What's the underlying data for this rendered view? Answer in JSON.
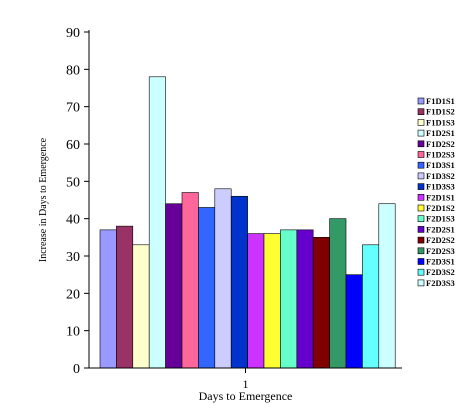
{
  "chart_data": {
    "type": "bar",
    "title": "",
    "xlabel": "Days to Emergence",
    "ylabel": "Increase in Days to Emergence",
    "categories": [
      "1"
    ],
    "ylim": [
      0,
      90
    ],
    "yticks": [
      0,
      10,
      20,
      30,
      40,
      50,
      60,
      70,
      80,
      90
    ],
    "grid": false,
    "legend_position": "right",
    "series": [
      {
        "name": "F1D1S1",
        "values": [
          37
        ],
        "color": "#9999ff"
      },
      {
        "name": "F1D1S2",
        "values": [
          38
        ],
        "color": "#993366"
      },
      {
        "name": "F1D1S3",
        "values": [
          33
        ],
        "color": "#ffffcc"
      },
      {
        "name": "F1D2S1",
        "values": [
          78
        ],
        "color": "#ccffff"
      },
      {
        "name": "F1D2S2",
        "values": [
          44
        ],
        "color": "#660099"
      },
      {
        "name": "F1D2S3",
        "values": [
          47
        ],
        "color": "#ff6699"
      },
      {
        "name": "F1D3S1",
        "values": [
          43
        ],
        "color": "#3366ff"
      },
      {
        "name": "F1D3S2",
        "values": [
          48
        ],
        "color": "#ccccff"
      },
      {
        "name": "F1D3S3",
        "values": [
          46
        ],
        "color": "#0033cc"
      },
      {
        "name": "F2D1S1",
        "values": [
          36
        ],
        "color": "#cc33ff"
      },
      {
        "name": "F2D1S2",
        "values": [
          36
        ],
        "color": "#ffff33"
      },
      {
        "name": "F2D1S3",
        "values": [
          37
        ],
        "color": "#66ffcc"
      },
      {
        "name": "F2D2S1",
        "values": [
          37
        ],
        "color": "#6600cc"
      },
      {
        "name": "F2D2S2",
        "values": [
          35
        ],
        "color": "#800000"
      },
      {
        "name": "F2D2S3",
        "values": [
          40
        ],
        "color": "#339966"
      },
      {
        "name": "F2D3S1",
        "values": [
          25
        ],
        "color": "#0000ff"
      },
      {
        "name": "F2D3S2",
        "values": [
          33
        ],
        "color": "#66ffff"
      },
      {
        "name": "F2D3S3",
        "values": [
          44
        ],
        "color": "#ccffff"
      }
    ]
  }
}
